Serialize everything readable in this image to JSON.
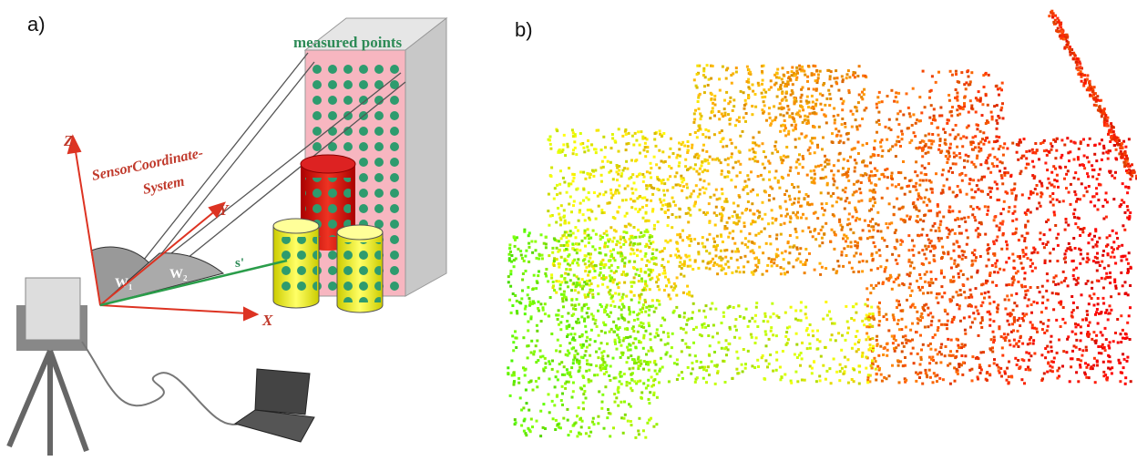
{
  "panel_a": {
    "label": "a)",
    "diagram": {
      "measured_points": "measured points",
      "z_axis": "Z",
      "y_axis": "Y",
      "x_axis": "X",
      "system_label_line1": "SensorCoordinate-",
      "system_label_line2": "System",
      "w1": "W₁",
      "w2": "W₂",
      "s_prime": "s'"
    }
  },
  "panel_b": {
    "label": "b)"
  }
}
